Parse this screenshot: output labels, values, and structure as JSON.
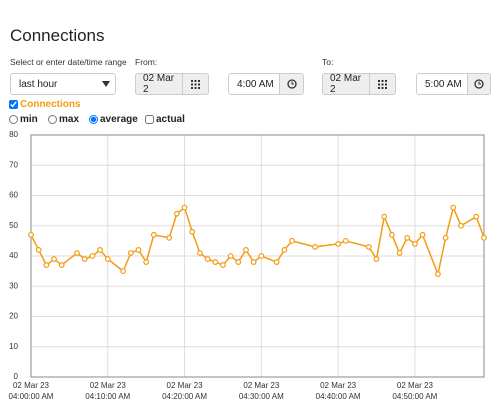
{
  "header": {
    "title": "Connections"
  },
  "range": {
    "label": "Select or enter date/time range",
    "selected": "last hour"
  },
  "from": {
    "label": "From:",
    "date": "02 Mar 2",
    "time": "4:00 AM"
  },
  "to": {
    "label": "To:",
    "date": "02 Mar 2",
    "time": "5:00 AM"
  },
  "series_checked": true,
  "modes": [
    {
      "label": "min",
      "checked": false
    },
    {
      "label": "max",
      "checked": false
    },
    {
      "label": "average",
      "checked": true
    },
    {
      "label": "actual",
      "checked": false
    }
  ],
  "chart_data": {
    "type": "line",
    "x": [
      "2023-03-02T04:00:00",
      "2023-03-02T04:01:00",
      "2023-03-02T04:02:00",
      "2023-03-02T04:03:00",
      "2023-03-02T04:04:00",
      "2023-03-02T04:06:00",
      "2023-03-02T04:07:00",
      "2023-03-02T04:08:00",
      "2023-03-02T04:09:00",
      "2023-03-02T04:10:00",
      "2023-03-02T04:12:00",
      "2023-03-02T04:13:00",
      "2023-03-02T04:14:00",
      "2023-03-02T04:15:00",
      "2023-03-02T04:16:00",
      "2023-03-02T04:18:00",
      "2023-03-02T04:19:00",
      "2023-03-02T04:20:00",
      "2023-03-02T04:21:00",
      "2023-03-02T04:22:00",
      "2023-03-02T04:23:00",
      "2023-03-02T04:24:00",
      "2023-03-02T04:25:00",
      "2023-03-02T04:26:00",
      "2023-03-02T04:27:00",
      "2023-03-02T04:28:00",
      "2023-03-02T04:29:00",
      "2023-03-02T04:30:00",
      "2023-03-02T04:32:00",
      "2023-03-02T04:33:00",
      "2023-03-02T04:34:00",
      "2023-03-02T04:37:00",
      "2023-03-02T04:40:00",
      "2023-03-02T04:41:00",
      "2023-03-02T04:44:00",
      "2023-03-02T04:45:00",
      "2023-03-02T04:46:00",
      "2023-03-02T04:47:00",
      "2023-03-02T04:48:00",
      "2023-03-02T04:49:00",
      "2023-03-02T04:50:00",
      "2023-03-02T04:51:00",
      "2023-03-02T04:53:00",
      "2023-03-02T04:54:00",
      "2023-03-02T04:55:00",
      "2023-03-02T04:56:00",
      "2023-03-02T04:58:00",
      "2023-03-02T04:59:00"
    ],
    "series": [
      {
        "name": "Connections",
        "color": "#f39c12",
        "values": [
          47,
          42,
          37,
          39,
          37,
          41,
          39,
          40,
          42,
          39,
          35,
          41,
          42,
          38,
          47,
          46,
          54,
          56,
          48,
          41,
          39,
          38,
          37,
          40,
          38,
          42,
          38,
          40,
          38,
          42,
          45,
          43,
          44,
          45,
          43,
          39,
          53,
          47,
          41,
          46,
          44,
          47,
          34,
          46,
          56,
          50,
          53,
          46
        ]
      }
    ],
    "xlim": [
      "2023-03-02T04:00:00",
      "2023-03-02T04:59:00"
    ],
    "xticks": [
      {
        "value": "2023-03-02T04:00:00",
        "label": "02 Mar 23\n04:00:00 AM"
      },
      {
        "value": "2023-03-02T04:10:00",
        "label": "02 Mar 23\n04:10:00 AM"
      },
      {
        "value": "2023-03-02T04:20:00",
        "label": "02 Mar 23\n04:20:00 AM"
      },
      {
        "value": "2023-03-02T04:30:00",
        "label": "02 Mar 23\n04:30:00 AM"
      },
      {
        "value": "2023-03-02T04:40:00",
        "label": "02 Mar 23\n04:40:00 AM"
      },
      {
        "value": "2023-03-02T04:50:00",
        "label": "02 Mar 23\n04:50:00 AM"
      }
    ],
    "ylim": [
      0,
      80
    ],
    "yticks": [
      0,
      10,
      20,
      30,
      40,
      50,
      60,
      70,
      80
    ],
    "grid": true
  }
}
